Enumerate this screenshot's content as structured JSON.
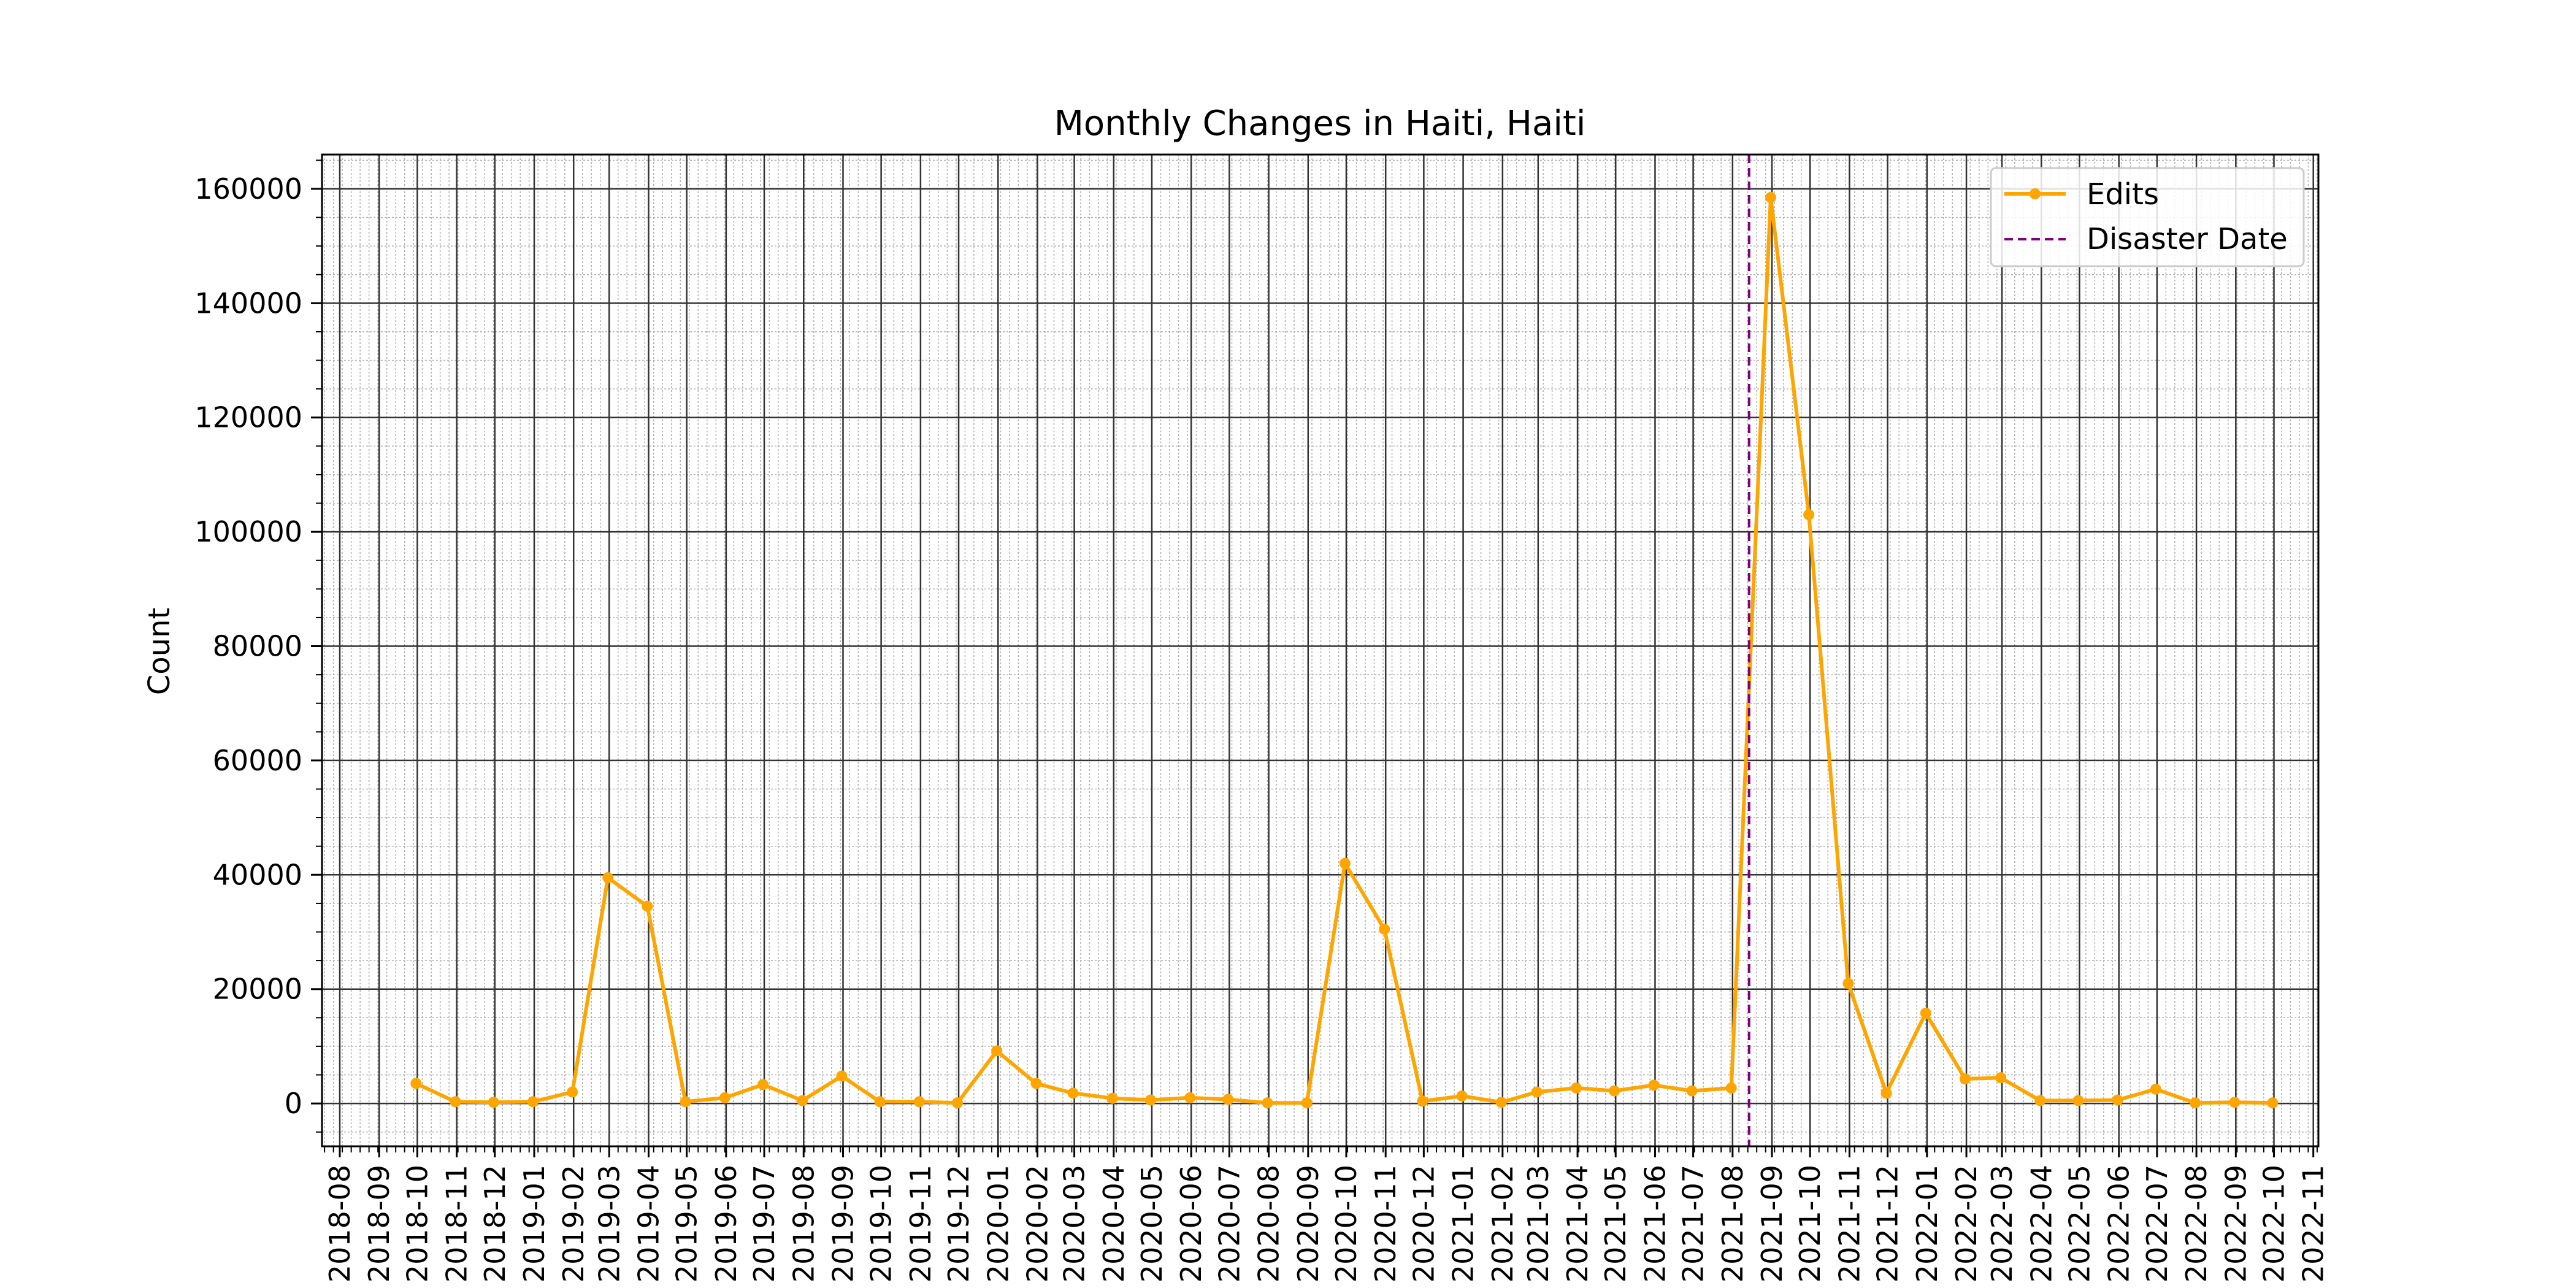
{
  "chart_data": {
    "type": "line",
    "title": "Monthly Changes in Haiti, Haiti",
    "xlabel": "",
    "ylabel": "Count",
    "x_range": [
      "2018-07-18",
      "2022-11-05"
    ],
    "ylim": [
      -7500,
      166000
    ],
    "grid": "major and minor",
    "legend_position": "top-right",
    "x_ticks": [
      "2018-08",
      "2018-09",
      "2018-10",
      "2018-11",
      "2018-12",
      "2019-01",
      "2019-02",
      "2019-03",
      "2019-04",
      "2019-05",
      "2019-06",
      "2019-07",
      "2019-08",
      "2019-09",
      "2019-10",
      "2019-11",
      "2019-12",
      "2020-01",
      "2020-02",
      "2020-03",
      "2020-04",
      "2020-05",
      "2020-06",
      "2020-07",
      "2020-08",
      "2020-09",
      "2020-10",
      "2020-11",
      "2020-12",
      "2021-01",
      "2021-02",
      "2021-03",
      "2021-04",
      "2021-05",
      "2021-06",
      "2021-07",
      "2021-08",
      "2021-09",
      "2021-10",
      "2021-11",
      "2021-12",
      "2022-01",
      "2022-02",
      "2022-03",
      "2022-04",
      "2022-05",
      "2022-06",
      "2022-07",
      "2022-08",
      "2022-09",
      "2022-10",
      "2022-11"
    ],
    "y_ticks": [
      0,
      20000,
      40000,
      60000,
      80000,
      100000,
      120000,
      140000,
      160000
    ],
    "series": [
      {
        "name": "Edits",
        "color": "#FFA500",
        "x": [
          "2018-09-30",
          "2018-10-31",
          "2018-11-30",
          "2018-12-31",
          "2019-01-31",
          "2019-02-28",
          "2019-03-31",
          "2019-04-30",
          "2019-05-31",
          "2019-06-30",
          "2019-07-31",
          "2019-08-31",
          "2019-09-30",
          "2019-10-31",
          "2019-11-30",
          "2019-12-31",
          "2020-01-31",
          "2020-02-29",
          "2020-03-31",
          "2020-04-30",
          "2020-05-31",
          "2020-06-30",
          "2020-07-31",
          "2020-08-31",
          "2020-09-30",
          "2020-10-31",
          "2020-11-30",
          "2020-12-31",
          "2021-01-31",
          "2021-02-28",
          "2021-03-31",
          "2021-04-30",
          "2021-05-31",
          "2021-06-30",
          "2021-07-31",
          "2021-08-31",
          "2021-09-30",
          "2021-10-31",
          "2021-11-30",
          "2021-12-31",
          "2022-01-31",
          "2022-02-28",
          "2022-03-31",
          "2022-04-30",
          "2022-05-31",
          "2022-06-30",
          "2022-07-31",
          "2022-08-31",
          "2022-09-30"
        ],
        "values": [
          3500,
          300,
          200,
          300,
          2000,
          39500,
          34500,
          300,
          1000,
          3300,
          500,
          4800,
          300,
          300,
          100,
          9200,
          3500,
          1800,
          900,
          600,
          1000,
          700,
          100,
          100,
          42000,
          30500,
          400,
          1300,
          200,
          2000,
          2700,
          2200,
          3200,
          2200,
          2700,
          158500,
          103000,
          21000,
          1800,
          15800,
          4300,
          4500,
          500,
          500,
          600,
          2500,
          100,
          200,
          100
        ]
      },
      {
        "name": "Disaster Date",
        "color": "#800080",
        "style": "dashed",
        "vertical_line_x": "2021-08-14"
      }
    ]
  }
}
